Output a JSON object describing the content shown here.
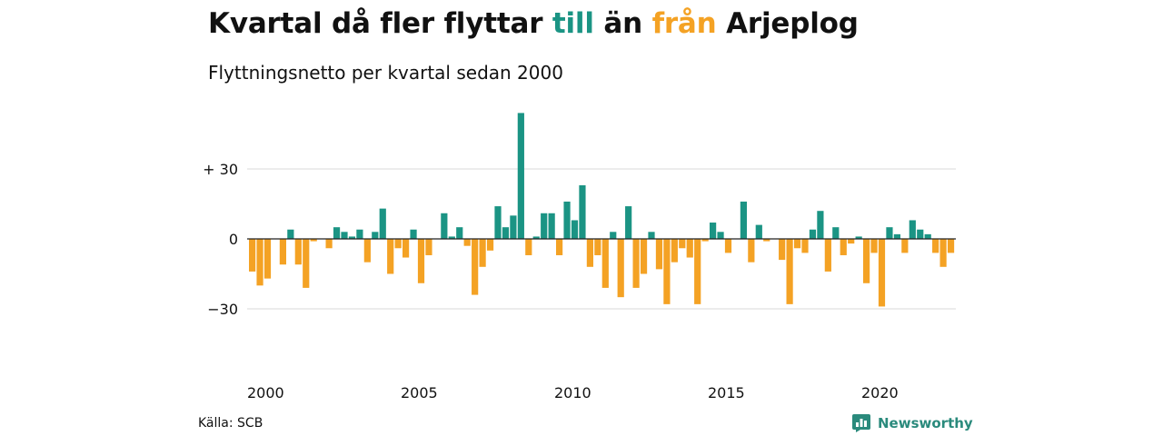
{
  "title": {
    "part1": "Kvartal då fler flyttar ",
    "word_in": "till",
    "part2": " än ",
    "word_out": "från",
    "part3": " Arjeplog"
  },
  "subtitle": "Flyttningsnetto per kvartal sedan 2000",
  "source": "Källa: SCB",
  "brand": "Newsworthy",
  "colors": {
    "positive": "#1b9484",
    "negative": "#f4a224",
    "grid": "#d9d9d9",
    "zero_line": "#222222",
    "brand": "#2a8a7c"
  },
  "chart_data": {
    "type": "bar",
    "x_start": "2000 Q1",
    "x_ticks": [
      "2000",
      "2005",
      "2010",
      "2015",
      "2020"
    ],
    "y_ticks": [
      {
        "value": 30,
        "label": "+ 30"
      },
      {
        "value": 0,
        "label": "0"
      },
      {
        "value": -30,
        "label": "−30"
      }
    ],
    "ylim": [
      -50,
      55
    ],
    "grid": true,
    "values": [
      -14,
      -20,
      -17,
      0,
      -11,
      4,
      -11,
      -21,
      -1,
      0,
      -4,
      5,
      3,
      1,
      4,
      -10,
      3,
      13,
      -15,
      -4,
      -8,
      4,
      -19,
      -7,
      0,
      11,
      1,
      5,
      -3,
      -24,
      -12,
      -5,
      14,
      5,
      10,
      54,
      -7,
      1,
      11,
      11,
      -7,
      16,
      8,
      23,
      -12,
      -7,
      -21,
      3,
      -25,
      14,
      -21,
      -15,
      3,
      -13,
      -28,
      -10,
      -4,
      -8,
      -28,
      -1,
      7,
      3,
      -6,
      0,
      16,
      -10,
      6,
      -1,
      0,
      -9,
      -28,
      -4,
      -6,
      4,
      12,
      -14,
      5,
      -7,
      -2,
      1,
      -19,
      -6,
      -29,
      5,
      2,
      -6,
      8,
      4,
      2,
      -6,
      -12,
      -6
    ]
  }
}
